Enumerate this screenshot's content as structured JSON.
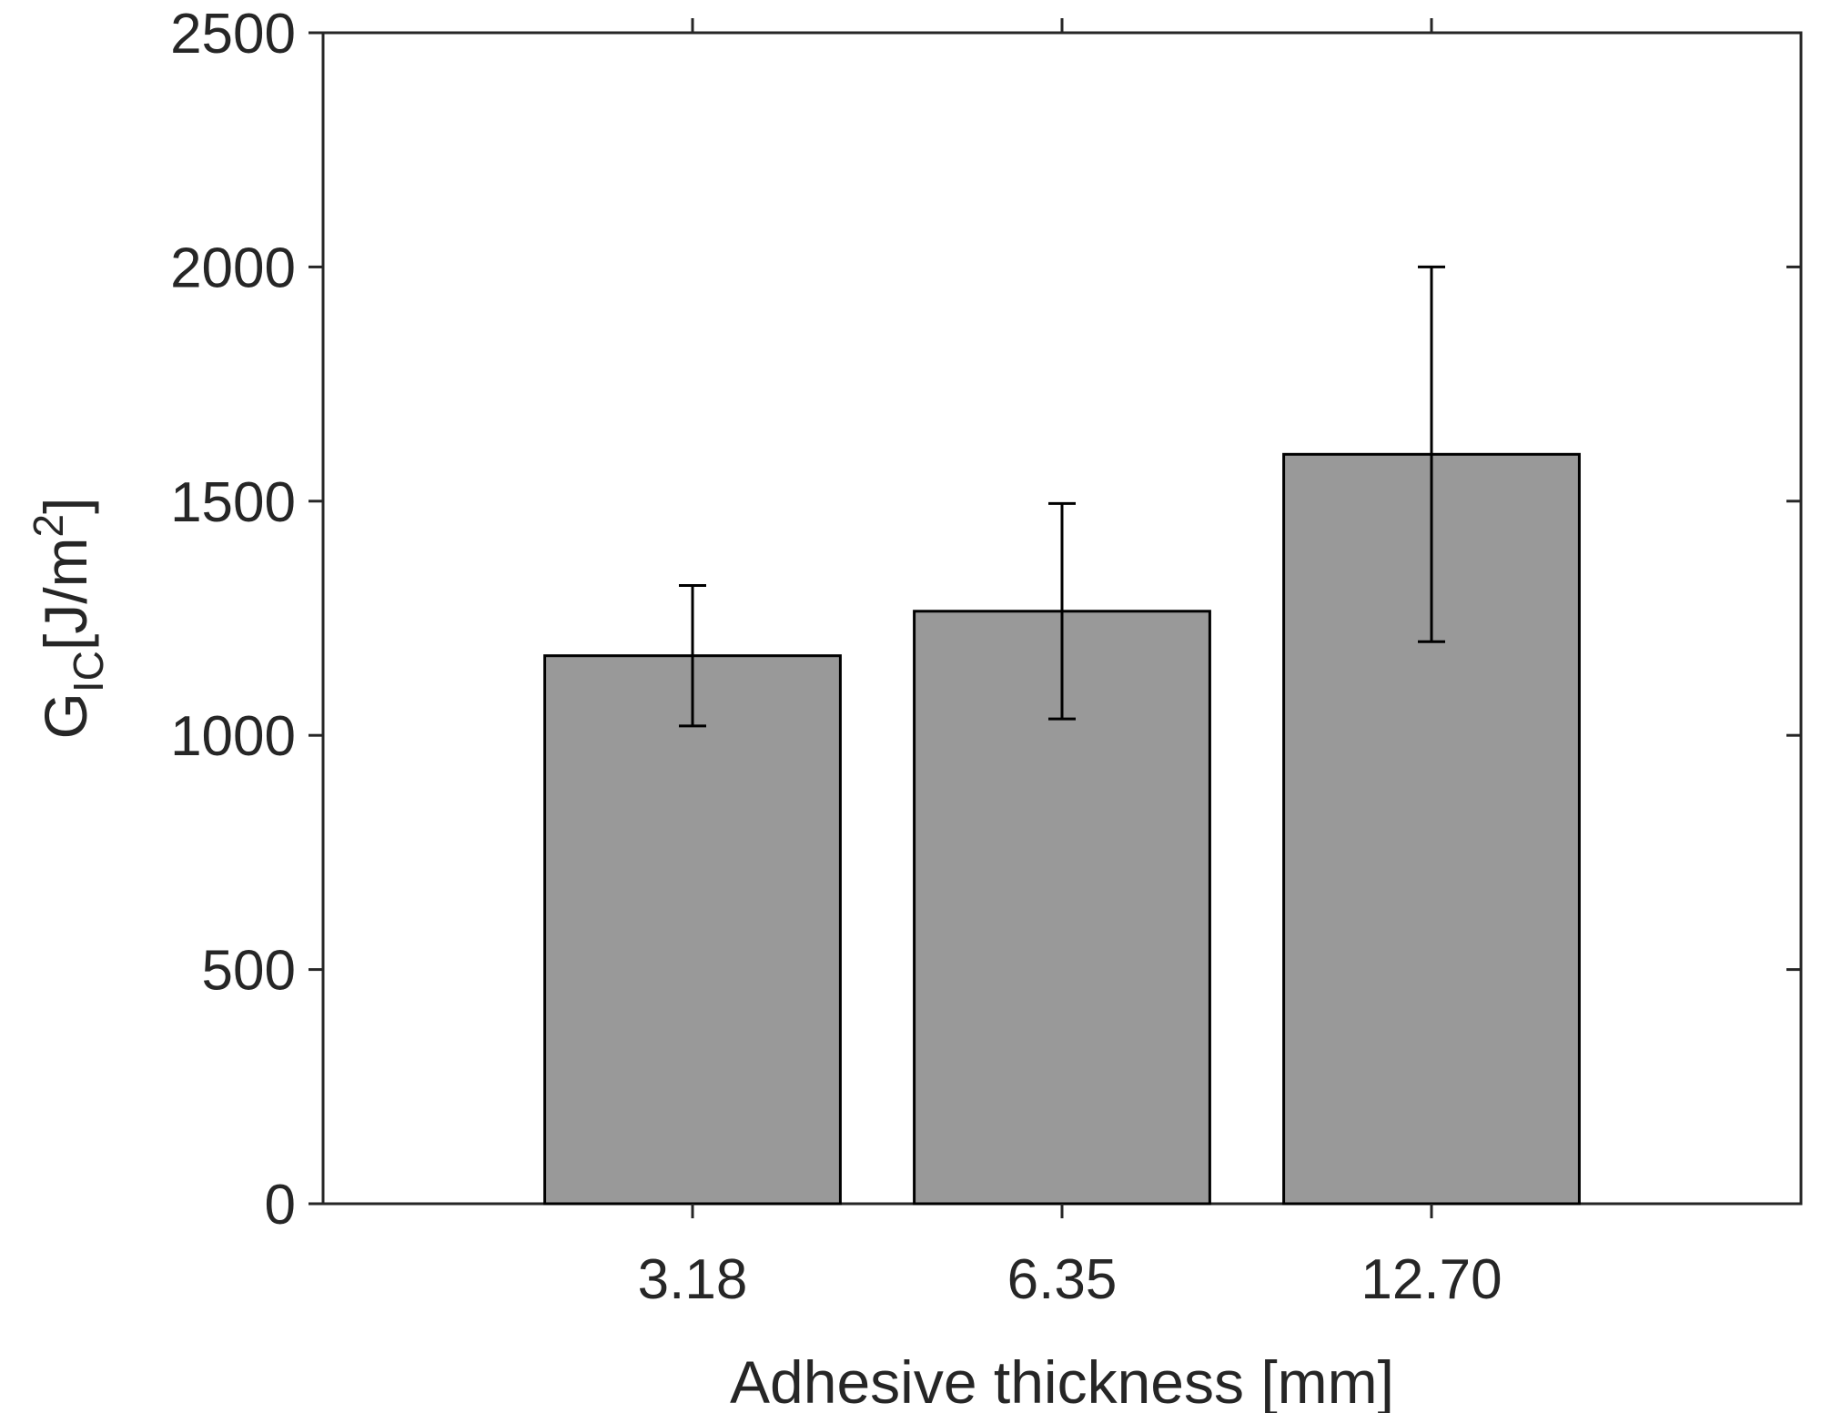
{
  "chart_data": {
    "type": "bar",
    "title": "",
    "categories": [
      "3.18",
      "6.35",
      "12.70"
    ],
    "values": [
      1170,
      1265,
      1600
    ],
    "error_bars": [
      {
        "lower": 1020,
        "upper": 1320
      },
      {
        "lower": 1035,
        "upper": 1495
      },
      {
        "lower": 1200,
        "upper": 2000
      }
    ],
    "xlabel": "Adhesive thickness [mm]",
    "ylabel": {
      "base": "G",
      "subscript": "IC",
      "unit_open": "[J/m",
      "superscript": "2",
      "unit_close": "]"
    },
    "ylim": [
      0,
      2500
    ],
    "yticks": [
      0,
      500,
      1000,
      1500,
      2000,
      2500
    ],
    "ytick_labels": [
      "0",
      "500",
      "1000",
      "1500",
      "2000",
      "2500"
    ],
    "grid": false,
    "legend": "none",
    "colors": {
      "bar_fill": "#999999",
      "bar_edge": "#000000",
      "axis": "#262626",
      "error_bar": "#000000",
      "text": "#262626"
    }
  }
}
